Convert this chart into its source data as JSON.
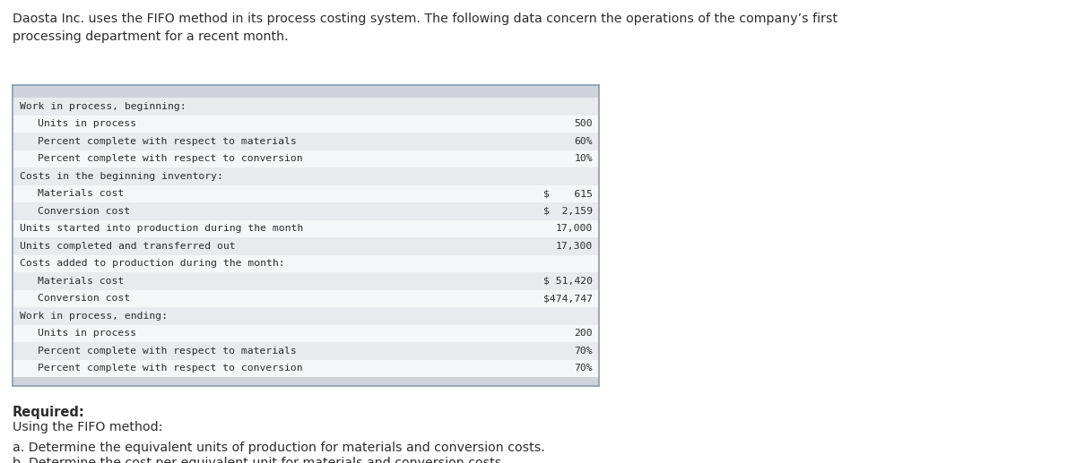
{
  "title_text": "Daosta Inc. uses the FIFO method in its process costing system. The following data concern the operations of the company’s first\nprocessing department for a recent month.",
  "header_bg": "#d0d4da",
  "row_bg_alt": "#e8eaed",
  "row_bg_white": "#f5f6f7",
  "table_rows": [
    {
      "label": "Work in process, beginning:",
      "value": "",
      "indent": 0,
      "bg": "alt"
    },
    {
      "label": "Units in process",
      "value": "500",
      "indent": 1,
      "bg": "white"
    },
    {
      "label": "Percent complete with respect to materials",
      "value": "60%",
      "indent": 1,
      "bg": "alt"
    },
    {
      "label": "Percent complete with respect to conversion",
      "value": "10%",
      "indent": 1,
      "bg": "white"
    },
    {
      "label": "Costs in the beginning inventory:",
      "value": "",
      "indent": 0,
      "bg": "alt"
    },
    {
      "label": "Materials cost",
      "value": "$    615",
      "indent": 1,
      "bg": "white"
    },
    {
      "label": "Conversion cost",
      "value": "$  2,159",
      "indent": 1,
      "bg": "alt"
    },
    {
      "label": "Units started into production during the month",
      "value": "17,000",
      "indent": 0,
      "bg": "white"
    },
    {
      "label": "Units completed and transferred out",
      "value": "17,300",
      "indent": 0,
      "bg": "alt"
    },
    {
      "label": "Costs added to production during the month:",
      "value": "",
      "indent": 0,
      "bg": "white"
    },
    {
      "label": "Materials cost",
      "value": "$ 51,420",
      "indent": 1,
      "bg": "alt"
    },
    {
      "label": "Conversion cost",
      "value": "$474,747",
      "indent": 1,
      "bg": "white"
    },
    {
      "label": "Work in process, ending:",
      "value": "",
      "indent": 0,
      "bg": "alt"
    },
    {
      "label": "Units in process",
      "value": "200",
      "indent": 1,
      "bg": "white"
    },
    {
      "label": "Percent complete with respect to materials",
      "value": "70%",
      "indent": 1,
      "bg": "alt"
    },
    {
      "label": "Percent complete with respect to conversion",
      "value": "70%",
      "indent": 1,
      "bg": "white"
    }
  ],
  "footer_lines": [
    {
      "text": "Required:",
      "bold": true
    },
    {
      "text": "Using the FIFO method:",
      "bold": false
    },
    {
      "text": "",
      "bold": false
    },
    {
      "text": "a. Determine the equivalent units of production for materials and conversion costs.",
      "bold": false
    },
    {
      "text": "b. Determine the cost per equivalent unit for materials and conversion costs.",
      "bold": false
    }
  ],
  "mono_font": "DejaVu Sans Mono",
  "sans_font": "DejaVu Sans",
  "text_color": "#2c2c2c",
  "table_border_color": "#8a9ab0"
}
